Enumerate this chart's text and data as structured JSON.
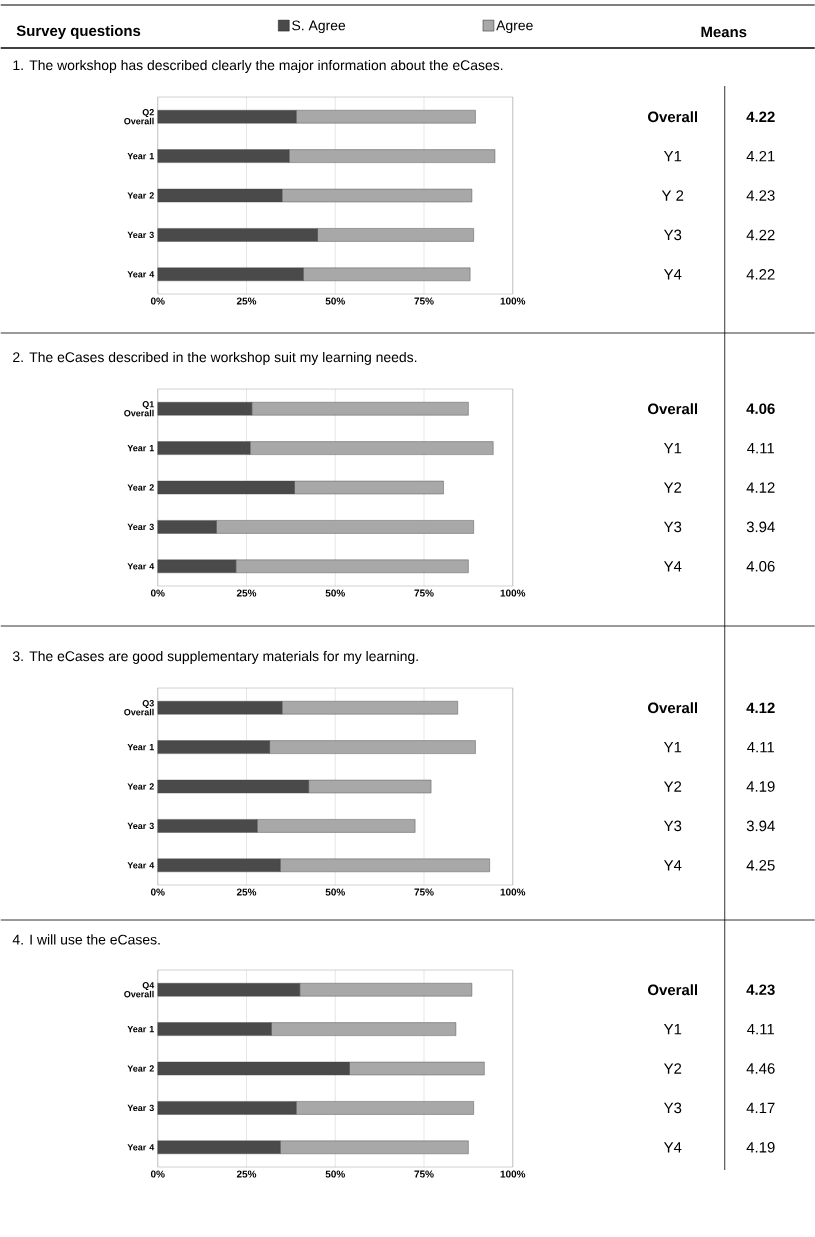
{
  "chart_data": [
    {
      "type": "other",
      "annotations": [
        "Survey questions",
        "Means"
      ]
    },
    {
      "type": "bar",
      "orientation": "horizontal",
      "stacked": true,
      "grid": "x",
      "legend": "top",
      "title": "1. The workshop has described clearly the major information about the eCases.",
      "categories": [
        "Q2 Overall",
        "Year 1",
        "Year 2",
        "Year 3",
        "Year 4"
      ],
      "series": [
        {
          "name": "S. Agree",
          "color": "#4a4a4a",
          "values": [
            39,
            37,
            35,
            45,
            41
          ]
        },
        {
          "name": "Agree",
          "color": "#a8a8a8",
          "values": [
            50.5,
            58,
            53.5,
            44,
            47
          ]
        }
      ],
      "xlim": [
        0,
        100
      ],
      "xticks": [
        {
          "value": 0,
          "label": "0%"
        },
        {
          "value": 25,
          "label": "25%"
        },
        {
          "value": 50,
          "label": "50%"
        },
        {
          "value": 75,
          "label": "75%"
        },
        {
          "value": 100,
          "label": "100%"
        }
      ],
      "annotations": [
        "Overall",
        "4.22",
        "Y1",
        "4.21",
        "Y 2",
        "4.23",
        "Y3",
        "4.22",
        "Y4",
        "4.22"
      ]
    },
    {
      "type": "bar",
      "orientation": "horizontal",
      "stacked": true,
      "grid": "x",
      "title": "2. The eCases described in the workshop suit my learning needs.",
      "categories": [
        "Q1 Overall",
        "Year 1",
        "Year 2",
        "Year 3",
        "Year 4"
      ],
      "series": [
        {
          "color": "#4a4a4a",
          "values": [
            26.5,
            26,
            38.5,
            16.5,
            22
          ]
        },
        {
          "color": "#a8a8a8",
          "values": [
            61,
            68.5,
            42,
            72.5,
            65.5
          ]
        }
      ],
      "xlim": [
        0,
        100
      ],
      "xticks": [
        {
          "value": 0,
          "label": "0%"
        },
        {
          "value": 25,
          "label": "25%"
        },
        {
          "value": 50,
          "label": "50%"
        },
        {
          "value": 75,
          "label": "75%"
        },
        {
          "value": 100,
          "label": "100%"
        }
      ],
      "annotations": [
        "Overall",
        "4.06",
        "Y1",
        "4.11",
        "Y2",
        "4.12",
        "Y3",
        "3.94",
        "Y4",
        "4.06"
      ]
    },
    {
      "type": "bar",
      "orientation": "horizontal",
      "stacked": true,
      "grid": "x",
      "title": "3. The eCases are good supplementary materials for my learning.",
      "categories": [
        "Q3 Overall",
        "Year 1",
        "Year 2",
        "Year 3",
        "Year 4"
      ],
      "series": [
        {
          "color": "#4a4a4a",
          "values": [
            35,
            31.5,
            42.5,
            28,
            34.5
          ]
        },
        {
          "color": "#a8a8a8",
          "values": [
            49.5,
            58,
            34.5,
            44.5,
            59
          ]
        }
      ],
      "xlim": [
        0,
        100
      ],
      "xticks": [
        {
          "value": 0,
          "label": "0%"
        },
        {
          "value": 25,
          "label": "25%"
        },
        {
          "value": 50,
          "label": "50%"
        },
        {
          "value": 75,
          "label": "75%"
        },
        {
          "value": 100,
          "label": "100%"
        }
      ],
      "annotations": [
        "Overall",
        "4.12",
        "Y1",
        "4.11",
        "Y2",
        "4.19",
        "Y3",
        "3.94",
        "Y4",
        "4.25"
      ]
    },
    {
      "type": "bar",
      "orientation": "horizontal",
      "stacked": true,
      "grid": "x",
      "title": "4. I will use the eCases.",
      "categories": [
        "Q4 Overall",
        "Year 1",
        "Year 2",
        "Year 3",
        "Year 4"
      ],
      "series": [
        {
          "color": "#4a4a4a",
          "values": [
            40,
            32,
            54,
            39,
            34.5
          ]
        },
        {
          "color": "#a8a8a8",
          "values": [
            48.5,
            52,
            38,
            50,
            53
          ]
        }
      ],
      "xlim": [
        0,
        100
      ],
      "xticks": [
        {
          "value": 0,
          "label": "0%"
        },
        {
          "value": 25,
          "label": "25%"
        },
        {
          "value": 50,
          "label": "50%"
        },
        {
          "value": 75,
          "label": "75%"
        },
        {
          "value": 100,
          "label": "100%"
        }
      ],
      "annotations": [
        "Overall",
        "4.23",
        "Y1",
        "4.11",
        "Y2",
        "4.46",
        "Y3",
        "4.17",
        "Y4",
        "4.19"
      ]
    }
  ]
}
